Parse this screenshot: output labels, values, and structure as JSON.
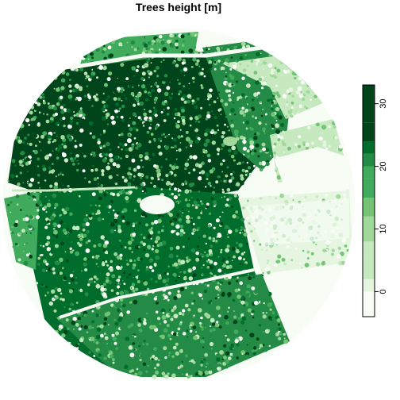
{
  "chart_data": {
    "type": "heatmap",
    "title": "Trees height [m]",
    "legend": {
      "placement": "right",
      "ticks": [
        0,
        10,
        20,
        30
      ],
      "range": [
        -4,
        33
      ],
      "bins": [
        {
          "from": -4,
          "to": -2,
          "color": "#f7fcf5"
        },
        {
          "from": -2,
          "to": 0,
          "color": "#f7fcf5"
        },
        {
          "from": 0,
          "to": 2,
          "color": "#e5f5e0"
        },
        {
          "from": 2,
          "to": 5,
          "color": "#c7e9c0"
        },
        {
          "from": 5,
          "to": 8,
          "color": "#c7e9c0"
        },
        {
          "from": 8,
          "to": 12,
          "color": "#a1d99b"
        },
        {
          "from": 12,
          "to": 15,
          "color": "#74c476"
        },
        {
          "from": 15,
          "to": 18,
          "color": "#41ab5d"
        },
        {
          "from": 18,
          "to": 20,
          "color": "#41ab5d"
        },
        {
          "from": 20,
          "to": 22,
          "color": "#238b45"
        },
        {
          "from": 22,
          "to": 24,
          "color": "#006d2c"
        },
        {
          "from": 24,
          "to": 27,
          "color": "#00441b"
        },
        {
          "from": 27,
          "to": 33,
          "color": "#00441b"
        }
      ]
    },
    "colors": {
      "background": "#f7fcf5",
      "low": "#c7e9c0",
      "mid": "#41ab5d",
      "high": "#00441b"
    },
    "grid": false,
    "axes_visible": false
  }
}
